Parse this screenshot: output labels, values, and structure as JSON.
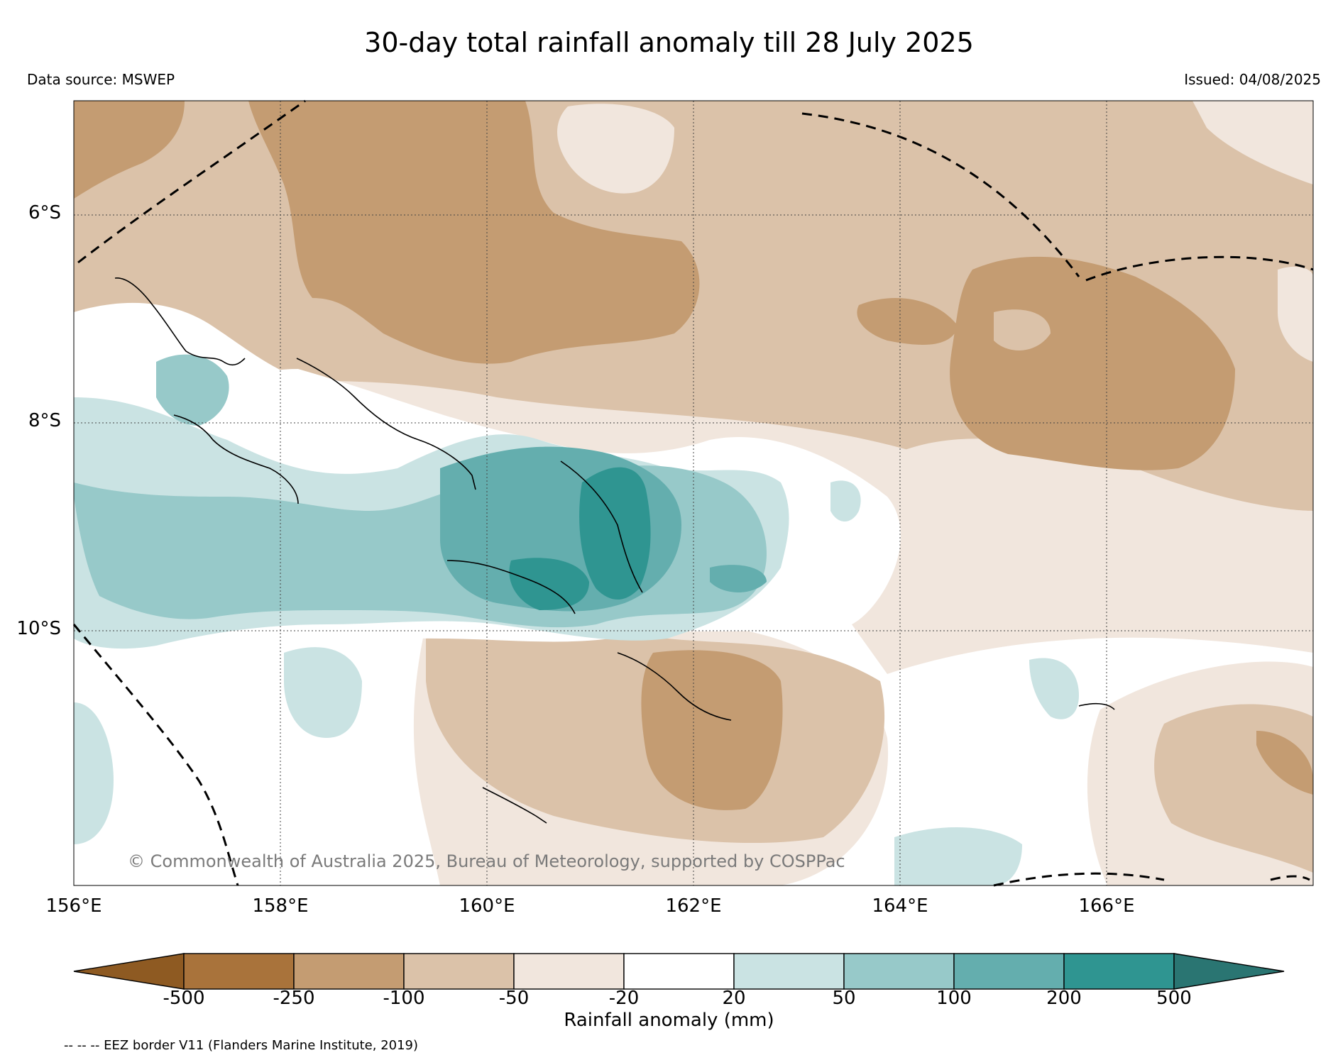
{
  "title": "30-day total rainfall anomaly till 28 July 2025",
  "data_source": "Data source: MSWEP",
  "issued": "Issued: 04/08/2025",
  "copyright": "© Commonwealth of Australia 2025, Bureau of Meteorology, supported by COSPPac",
  "eez_note": "-- -- -- EEZ border V11 (Flanders Marine Institute, 2019)",
  "lat_labels": [
    "6°S",
    "8°S",
    "10°S"
  ],
  "lon_labels": [
    "156°E",
    "158°E",
    "160°E",
    "162°E",
    "164°E",
    "166°E"
  ],
  "colorbar": {
    "label": "Rainfall anomaly (mm)",
    "ticks": [
      "-500",
      "-250",
      "-100",
      "-50",
      "-20",
      "20",
      "50",
      "100",
      "200",
      "500"
    ],
    "colors": [
      "#8e5a22",
      "#a9733b",
      "#c49c72",
      "#dbc2a9",
      "#f1e6dd",
      "#ffffff",
      "#cae3e3",
      "#97c9c9",
      "#64aeae",
      "#2f9591",
      "#2a7572"
    ]
  }
}
